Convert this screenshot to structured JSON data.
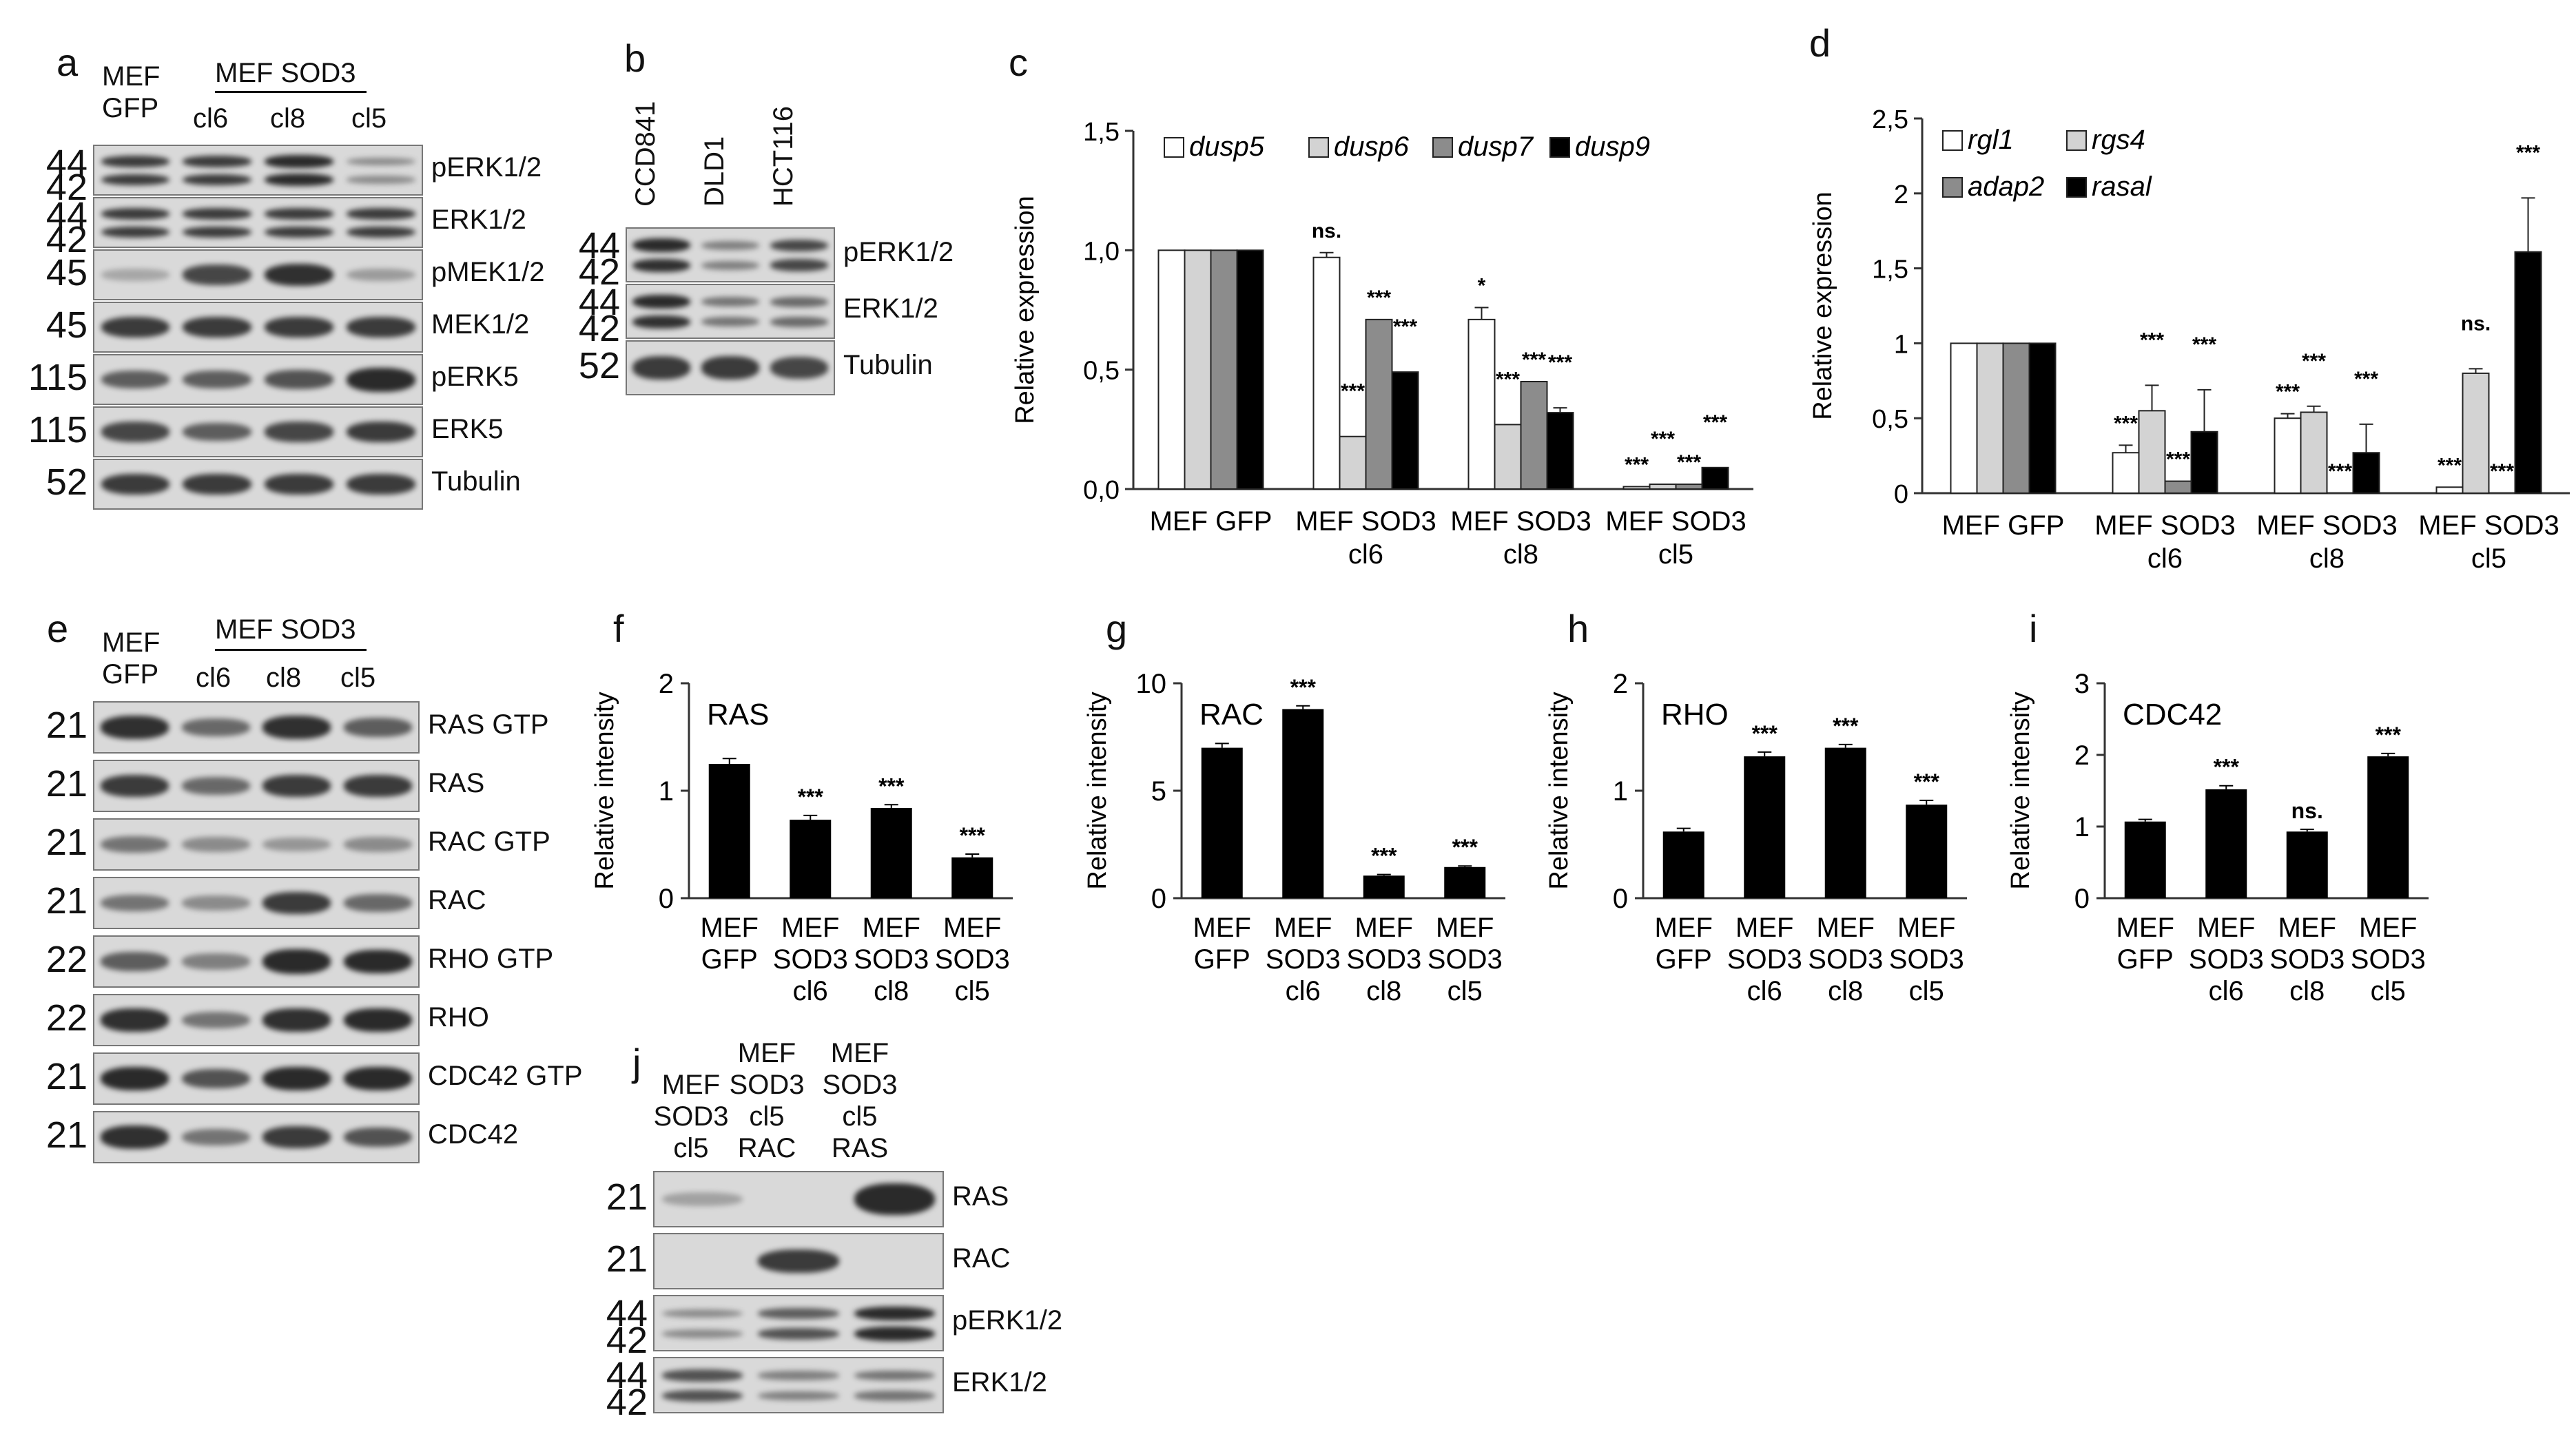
{
  "panel_a": {
    "letter": "a",
    "lane_header_left": [
      "MEF",
      "GFP"
    ],
    "lane_group": "MEF SOD3",
    "lanes": [
      "cl6",
      "cl8",
      "cl5"
    ],
    "rows": [
      {
        "kda": [
          "44",
          "42"
        ],
        "label": "pERK1/2",
        "bands": [
          [
            1,
            1
          ],
          [
            1,
            1
          ],
          [
            1.3,
            1.2
          ],
          [
            0.3,
            0.3
          ]
        ]
      },
      {
        "kda": [
          "44",
          "42"
        ],
        "label": "ERK1/2",
        "bands": [
          [
            1,
            1
          ],
          [
            1,
            1
          ],
          [
            1,
            1
          ],
          [
            1,
            1
          ]
        ]
      },
      {
        "kda": [
          "45"
        ],
        "label": "pMEK1/2",
        "bands": [
          [
            0.05
          ],
          [
            0.9
          ],
          [
            1.1
          ],
          [
            0.15
          ]
        ]
      },
      {
        "kda": [
          "45"
        ],
        "label": "MEK1/2",
        "bands": [
          [
            1
          ],
          [
            1
          ],
          [
            1
          ],
          [
            1
          ]
        ]
      },
      {
        "kda": [
          "115"
        ],
        "label": "pERK5",
        "bands": [
          [
            0.7
          ],
          [
            0.7
          ],
          [
            0.8
          ],
          [
            1.3
          ]
        ]
      },
      {
        "kda": [
          "115"
        ],
        "label": "ERK5",
        "bands": [
          [
            0.9
          ],
          [
            0.7
          ],
          [
            0.9
          ],
          [
            1
          ]
        ]
      },
      {
        "kda": [
          "52"
        ],
        "label": "Tubulin",
        "bands": [
          [
            1
          ],
          [
            1
          ],
          [
            1
          ],
          [
            1
          ]
        ]
      }
    ]
  },
  "panel_b": {
    "letter": "b",
    "lanes": [
      "CCD841",
      "DLD1",
      "HCT116"
    ],
    "rows": [
      {
        "kda": [
          "44",
          "42"
        ],
        "label": "pERK1/2",
        "bands": [
          [
            1.2,
            1.1
          ],
          [
            0.4,
            0.4
          ],
          [
            0.9,
            0.9
          ]
        ]
      },
      {
        "kda": [
          "44",
          "42"
        ],
        "label": "ERK1/2",
        "bands": [
          [
            1.2,
            1.1
          ],
          [
            0.5,
            0.5
          ],
          [
            0.6,
            0.6
          ]
        ]
      },
      {
        "kda": [
          "52"
        ],
        "label": "Tubulin",
        "bands": [
          [
            1
          ],
          [
            1
          ],
          [
            0.9
          ]
        ]
      }
    ]
  },
  "panel_c": {
    "letter": "c",
    "chart_data": {
      "type": "bar",
      "ylabel": "Relative expression",
      "ylim": [
        0,
        1.5
      ],
      "yticks": [
        "0,0",
        "0,5",
        "1,0",
        "1,5"
      ],
      "categories": [
        [
          "MEF GFP"
        ],
        [
          "MEF SOD3",
          "cl6"
        ],
        [
          "MEF SOD3",
          "cl8"
        ],
        [
          "MEF SOD3",
          "cl5"
        ]
      ],
      "series": [
        {
          "name": "dusp5",
          "color": "#ffffff",
          "values": [
            1.0,
            0.97,
            0.71,
            0.01
          ],
          "err": [
            0,
            0.02,
            0.05,
            0
          ]
        },
        {
          "name": "dusp6",
          "color": "#d3d3d3",
          "values": [
            1.0,
            0.22,
            0.27,
            0.02
          ],
          "err": [
            0,
            0,
            0,
            0
          ]
        },
        {
          "name": "dusp7",
          "color": "#8c8c8c",
          "values": [
            1.0,
            0.71,
            0.45,
            0.02
          ],
          "err": [
            0,
            0,
            0,
            0
          ]
        },
        {
          "name": "dusp9",
          "color": "#000000",
          "values": [
            1.0,
            0.49,
            0.32,
            0.09
          ],
          "err": [
            0,
            0,
            0.02,
            0
          ]
        }
      ],
      "annotations": [
        {
          "group": 1,
          "series": 0,
          "text": "ns."
        },
        {
          "group": 1,
          "series": 1,
          "text": "***"
        },
        {
          "group": 1,
          "series": 2,
          "text": "***"
        },
        {
          "group": 1,
          "series": 3,
          "text": "***"
        },
        {
          "group": 2,
          "series": 0,
          "text": "*"
        },
        {
          "group": 2,
          "series": 1,
          "text": "***"
        },
        {
          "group": 2,
          "series": 2,
          "text": "***"
        },
        {
          "group": 2,
          "series": 3,
          "text": "***"
        },
        {
          "group": 3,
          "series": 0,
          "text": "***"
        },
        {
          "group": 3,
          "series": 1,
          "text": "***"
        },
        {
          "group": 3,
          "series": 2,
          "text": "***"
        },
        {
          "group": 3,
          "series": 3,
          "text": "***"
        }
      ],
      "legend": "top"
    }
  },
  "panel_d": {
    "letter": "d",
    "chart_data": {
      "type": "bar",
      "ylabel": "Relative expression",
      "ylim": [
        0,
        2.5
      ],
      "yticks": [
        "0",
        "0,5",
        "1",
        "1,5",
        "2",
        "2,5"
      ],
      "categories": [
        [
          "MEF GFP"
        ],
        [
          "MEF SOD3",
          "cl6"
        ],
        [
          "MEF SOD3",
          "cl8"
        ],
        [
          "MEF SOD3",
          "cl5"
        ]
      ],
      "series": [
        {
          "name": "rgl1",
          "color": "#ffffff",
          "values": [
            1.0,
            0.27,
            0.5,
            0.04
          ],
          "err": [
            0,
            0.05,
            0.03,
            0
          ]
        },
        {
          "name": "rgs4",
          "color": "#d3d3d3",
          "values": [
            1.0,
            0.55,
            0.54,
            0.8
          ],
          "err": [
            0,
            0.17,
            0.04,
            0.03
          ]
        },
        {
          "name": "adap2",
          "color": "#8c8c8c",
          "values": [
            1.0,
            0.08,
            0,
            0
          ],
          "err": [
            0,
            0,
            0,
            0
          ]
        },
        {
          "name": "rasal",
          "color": "#000000",
          "values": [
            1.0,
            0.41,
            0.27,
            1.61
          ],
          "err": [
            0,
            0.28,
            0.19,
            0.36
          ]
        }
      ],
      "annotations": [
        {
          "group": 1,
          "series": 0,
          "text": "***"
        },
        {
          "group": 1,
          "series": 1,
          "text": "***"
        },
        {
          "group": 1,
          "series": 2,
          "text": "***"
        },
        {
          "group": 1,
          "series": 3,
          "text": "***"
        },
        {
          "group": 2,
          "series": 0,
          "text": "***"
        },
        {
          "group": 2,
          "series": 1,
          "text": "***"
        },
        {
          "group": 2,
          "series": 2,
          "text": "***"
        },
        {
          "group": 2,
          "series": 3,
          "text": "***"
        },
        {
          "group": 3,
          "series": 0,
          "text": "***"
        },
        {
          "group": 3,
          "series": 1,
          "text": "ns."
        },
        {
          "group": 3,
          "series": 2,
          "text": "***"
        },
        {
          "group": 3,
          "series": 3,
          "text": "***"
        }
      ],
      "legend": "top-left"
    }
  },
  "panel_e": {
    "letter": "e",
    "lane_header_left": [
      "MEF",
      "GFP"
    ],
    "lane_group": "MEF SOD3",
    "lanes": [
      "cl6",
      "cl8",
      "cl5"
    ],
    "rows": [
      {
        "kda": [
          "21"
        ],
        "label": "RAS GTP",
        "bands": [
          [
            1.1
          ],
          [
            0.6
          ],
          [
            1.1
          ],
          [
            0.7
          ]
        ]
      },
      {
        "kda": [
          "21"
        ],
        "label": "RAS",
        "bands": [
          [
            1
          ],
          [
            0.6
          ],
          [
            1
          ],
          [
            1
          ]
        ]
      },
      {
        "kda": [
          "21"
        ],
        "label": "RAC GTP",
        "bands": [
          [
            0.5
          ],
          [
            0.3
          ],
          [
            0.2
          ],
          [
            0.3
          ]
        ]
      },
      {
        "kda": [
          "21"
        ],
        "label": "RAC",
        "bands": [
          [
            0.5
          ],
          [
            0.3
          ],
          [
            1
          ],
          [
            0.6
          ]
        ]
      },
      {
        "kda": [
          "22"
        ],
        "label": "RHO GTP",
        "bands": [
          [
            0.7
          ],
          [
            0.4
          ],
          [
            1.3
          ],
          [
            1.2
          ]
        ]
      },
      {
        "kda": [
          "22"
        ],
        "label": "RHO",
        "bands": [
          [
            1.1
          ],
          [
            0.5
          ],
          [
            1.1
          ],
          [
            1.2
          ]
        ]
      },
      {
        "kda": [
          "21"
        ],
        "label": "CDC42 GTP",
        "bands": [
          [
            1.2
          ],
          [
            0.8
          ],
          [
            1.2
          ],
          [
            1.2
          ]
        ]
      },
      {
        "kda": [
          "21"
        ],
        "label": "CDC42",
        "bands": [
          [
            1.1
          ],
          [
            0.5
          ],
          [
            1
          ],
          [
            0.8
          ]
        ]
      }
    ]
  },
  "small_charts": [
    {
      "letter": "f",
      "chart_data": {
        "type": "bar",
        "title": "RAS",
        "ylabel": "Relative intensity",
        "ylim": [
          0,
          2
        ],
        "yticks": [
          "0",
          "1",
          "2"
        ],
        "categories": [
          [
            "MEF",
            "GFP"
          ],
          [
            "MEF",
            "SOD3",
            "cl6"
          ],
          [
            "MEF",
            "SOD3",
            "cl8"
          ],
          [
            "MEF",
            "SOD3",
            "cl5"
          ]
        ],
        "values": [
          1.25,
          0.73,
          0.84,
          0.38
        ],
        "err": [
          0.05,
          0.04,
          0.03,
          0.03
        ],
        "annotations": [
          "",
          "***",
          "***",
          "***"
        ]
      }
    },
    {
      "letter": "g",
      "chart_data": {
        "type": "bar",
        "title": "RAC",
        "ylabel": "Relative intensity",
        "ylim": [
          0,
          10
        ],
        "yticks": [
          "0",
          "5",
          "10"
        ],
        "categories": [
          [
            "MEF",
            "GFP"
          ],
          [
            "MEF",
            "SOD3",
            "cl6"
          ],
          [
            "MEF",
            "SOD3",
            "cl8"
          ],
          [
            "MEF",
            "SOD3",
            "cl5"
          ]
        ],
        "values": [
          7.0,
          8.8,
          1.05,
          1.45
        ],
        "err": [
          0.2,
          0.15,
          0.05,
          0.05
        ],
        "annotations": [
          "",
          "***",
          "***",
          "***"
        ]
      }
    },
    {
      "letter": "h",
      "chart_data": {
        "type": "bar",
        "title": "RHO",
        "ylabel": "Relative intensity",
        "ylim": [
          0,
          2
        ],
        "yticks": [
          "0",
          "1",
          "2"
        ],
        "categories": [
          [
            "MEF",
            "GFP"
          ],
          [
            "MEF",
            "SOD3",
            "cl6"
          ],
          [
            "MEF",
            "SOD3",
            "cl8"
          ],
          [
            "MEF",
            "SOD3",
            "cl5"
          ]
        ],
        "values": [
          0.62,
          1.32,
          1.4,
          0.87
        ],
        "err": [
          0.03,
          0.04,
          0.03,
          0.04
        ],
        "annotations": [
          "",
          "***",
          "***",
          "***"
        ]
      }
    },
    {
      "letter": "i",
      "chart_data": {
        "type": "bar",
        "title": "CDC42",
        "ylabel": "Relative intensity",
        "ylim": [
          0,
          3
        ],
        "yticks": [
          "0",
          "1",
          "2",
          "3"
        ],
        "categories": [
          [
            "MEF",
            "GFP"
          ],
          [
            "MEF",
            "SOD3",
            "cl6"
          ],
          [
            "MEF",
            "SOD3",
            "cl8"
          ],
          [
            "MEF",
            "SOD3",
            "cl5"
          ]
        ],
        "values": [
          1.07,
          1.52,
          0.93,
          1.98
        ],
        "err": [
          0.03,
          0.05,
          0.03,
          0.04
        ],
        "annotations": [
          "",
          "***",
          "ns.",
          "***"
        ]
      }
    }
  ],
  "panel_j": {
    "letter": "j",
    "lanes": [
      [
        "MEF",
        "SOD3",
        "cl5"
      ],
      [
        "MEF",
        "SOD3",
        "cl5",
        "RAC"
      ],
      [
        "MEF",
        "SOD3",
        "cl5",
        "RAS"
      ]
    ],
    "rows": [
      {
        "kda": [
          "21"
        ],
        "label": "RAS",
        "bands": [
          [
            0.1
          ],
          [
            0
          ],
          [
            1.8
          ]
        ]
      },
      {
        "kda": [
          "21"
        ],
        "label": "RAC",
        "bands": [
          [
            0
          ],
          [
            1
          ],
          [
            0
          ]
        ]
      },
      {
        "kda": [
          "44",
          "42"
        ],
        "label": "pERK1/2",
        "bands": [
          [
            0.3,
            0.3
          ],
          [
            0.7,
            0.8
          ],
          [
            1.2,
            1.3
          ]
        ]
      },
      {
        "kda": [
          "44",
          "42"
        ],
        "label": "ERK1/2",
        "bands": [
          [
            0.8,
            0.8
          ],
          [
            0.4,
            0.4
          ],
          [
            0.5,
            0.5
          ]
        ]
      }
    ]
  }
}
